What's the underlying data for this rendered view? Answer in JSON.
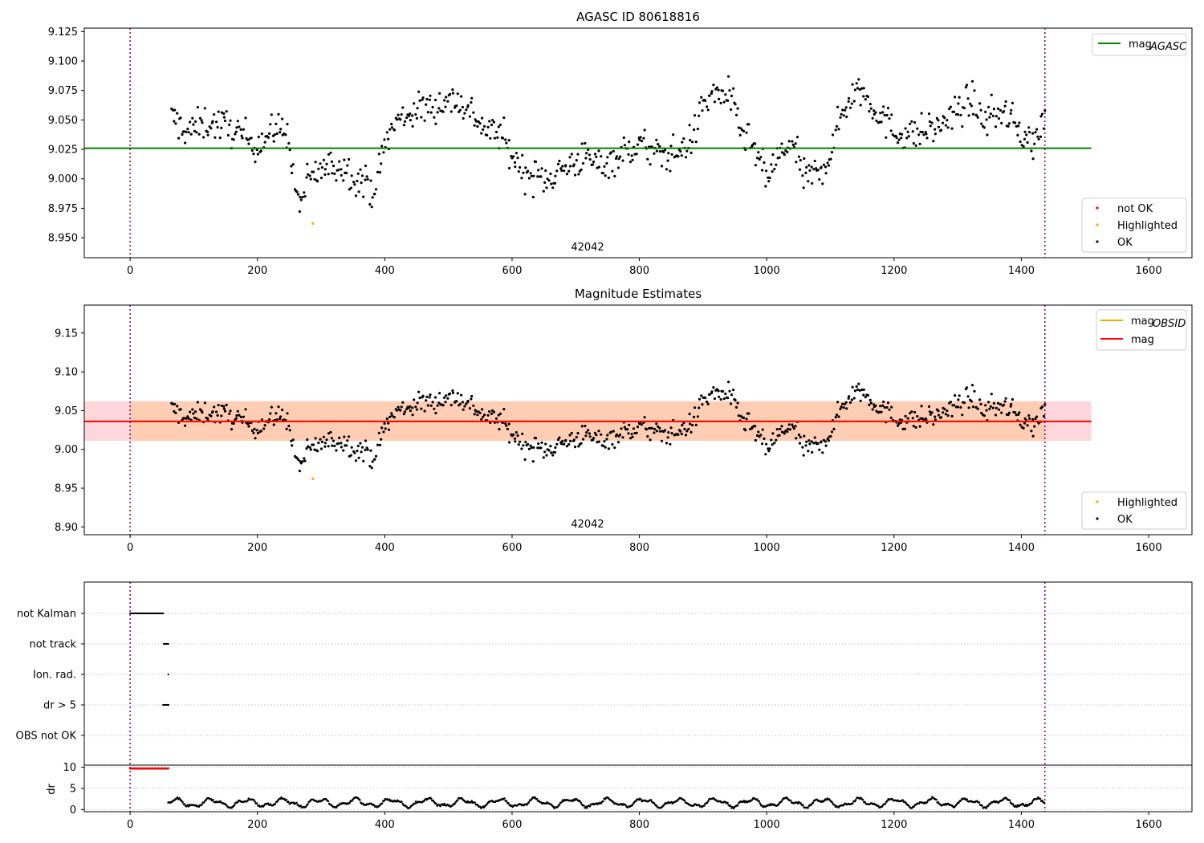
{
  "chart_data": [
    {
      "type": "scatter",
      "title": "AGASC ID 80618816",
      "annotation": "42042",
      "xlim": [
        -72,
        1668
      ],
      "ylim": [
        8.933,
        9.128
      ],
      "xticks": [
        0,
        200,
        400,
        600,
        800,
        1000,
        1200,
        1400,
        1600
      ],
      "xtick_labels": [
        "0",
        "200",
        "400",
        "600",
        "800",
        "1000",
        "1200",
        "1400",
        "1600"
      ],
      "yticks": [
        8.95,
        8.975,
        9.0,
        9.025,
        9.05,
        9.075,
        9.1,
        9.125
      ],
      "ytick_labels": [
        "8.950",
        "8.975",
        "9.000",
        "9.025",
        "9.050",
        "9.075",
        "9.100",
        "9.125"
      ],
      "vlines": [
        0,
        1437
      ],
      "hline": {
        "name": "mag_AGASC",
        "y": 9.026,
        "x0": -72,
        "x1": 1510,
        "color": "#008000"
      },
      "legend_line": {
        "label": "mag",
        "sub": "AGASC",
        "color": "#008000"
      },
      "legend_points": [
        {
          "label": "not OK",
          "color": "#ff0000"
        },
        {
          "label": "Highlighted",
          "color": "#ffa500"
        },
        {
          "label": "OK",
          "color": "#000000"
        }
      ],
      "highlighted_points": [
        {
          "x": 287,
          "y": 8.962
        }
      ],
      "series_ok_trend": {
        "x": [
          65,
          90,
          120,
          150,
          175,
          200,
          225,
          245,
          255,
          265,
          280,
          300,
          330,
          360,
          385,
          400,
          420,
          450,
          480,
          510,
          540,
          560,
          580,
          600,
          620,
          650,
          680,
          710,
          740,
          770,
          800,
          830,
          860,
          885,
          900,
          920,
          940,
          960,
          980,
          1000,
          1020,
          1040,
          1060,
          1080,
          1100,
          1120,
          1145,
          1170,
          1200,
          1230,
          1260,
          1290,
          1320,
          1340,
          1370,
          1400,
          1420,
          1437
        ],
        "y": [
          9.052,
          9.04,
          9.048,
          9.045,
          9.037,
          9.03,
          9.04,
          9.045,
          9.005,
          8.978,
          8.998,
          9.008,
          9.012,
          9.0,
          8.99,
          9.03,
          9.05,
          9.058,
          9.063,
          9.068,
          9.055,
          9.04,
          9.04,
          9.02,
          9.005,
          9.0,
          9.008,
          9.018,
          9.012,
          9.02,
          9.03,
          9.02,
          9.022,
          9.035,
          9.065,
          9.072,
          9.072,
          9.04,
          9.025,
          9.0,
          9.02,
          9.03,
          9.0,
          9.005,
          9.02,
          9.06,
          9.078,
          9.06,
          9.04,
          9.038,
          9.042,
          9.052,
          9.068,
          9.05,
          9.058,
          9.04,
          9.03,
          9.05
        ],
        "noise": 0.013,
        "count": 760
      }
    },
    {
      "type": "scatter",
      "title": "Magnitude Estimates",
      "annotation": "42042",
      "xlim": [
        -72,
        1668
      ],
      "ylim": [
        8.89,
        9.186
      ],
      "xticks": [
        0,
        200,
        400,
        600,
        800,
        1000,
        1200,
        1400,
        1600
      ],
      "xtick_labels": [
        "0",
        "200",
        "400",
        "600",
        "800",
        "1000",
        "1200",
        "1400",
        "1600"
      ],
      "yticks": [
        8.9,
        8.95,
        9.0,
        9.05,
        9.1,
        9.15
      ],
      "ytick_labels": [
        "8.90",
        "8.95",
        "9.00",
        "9.05",
        "9.10",
        "9.15"
      ],
      "vlines": [
        0,
        1437
      ],
      "mag": {
        "y": 9.036,
        "low": 9.011,
        "high": 9.062,
        "x0": -72,
        "x1": 1510,
        "color": "#ff0000"
      },
      "mag_obsid": {
        "y": 9.036,
        "x0": 0,
        "x1": 1437,
        "color": "#ffa500"
      },
      "legend_lines": [
        {
          "label": "mag",
          "sub": "OBSID",
          "color": "#ffa500"
        },
        {
          "label": "mag",
          "sub": "",
          "color": "#ff0000"
        }
      ],
      "legend_points": [
        {
          "label": "Highlighted",
          "color": "#ffa500"
        },
        {
          "label": "OK",
          "color": "#000000"
        }
      ],
      "highlighted_points": [
        {
          "x": 287,
          "y": 8.962
        }
      ]
    },
    {
      "type": "scatter",
      "title": "",
      "xlim": [
        -72,
        1668
      ],
      "xticks": [
        0,
        200,
        400,
        600,
        800,
        1000,
        1200,
        1400,
        1600
      ],
      "xtick_labels": [
        "0",
        "200",
        "400",
        "600",
        "800",
        "1000",
        "1200",
        "1400",
        "1600"
      ],
      "vlines": [
        0,
        1437
      ],
      "flag_rows": [
        {
          "label": "not Kalman",
          "x_start": 0,
          "x_end": 52
        },
        {
          "label": "not track",
          "x_start": 53,
          "x_end": 60
        },
        {
          "label": "Ion. rad.",
          "x_start": 60,
          "x_end": 61
        },
        {
          "label": "dr > 5",
          "x_start": 52,
          "x_end": 61
        },
        {
          "label": "OBS not OK",
          "x_start": null,
          "x_end": null
        }
      ],
      "dr_panel": {
        "ylabel": "dr",
        "ylim": [
          -0.5,
          10.5
        ],
        "yticks": [
          0,
          5,
          10
        ],
        "ytick_labels": [
          "0",
          "5",
          "10"
        ],
        "high_segment": {
          "x_start": 0,
          "x_end": 60,
          "y": 9.7
        },
        "baseline_start": 60,
        "mean": 1.6
      }
    }
  ]
}
